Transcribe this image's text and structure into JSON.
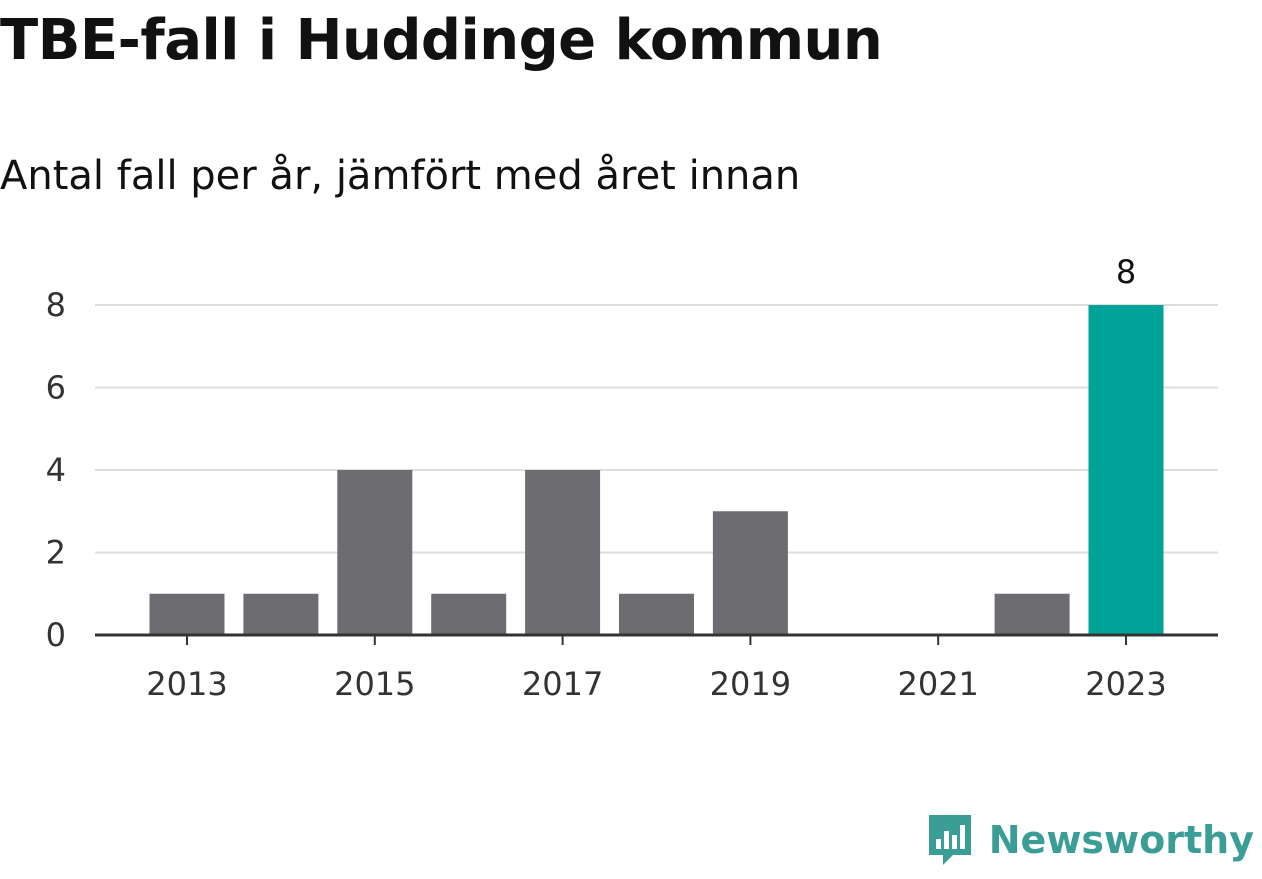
{
  "title": "TBE-fall i Huddinge kommun",
  "subtitle": "Antal fall per år, jämfört med året innan",
  "brand": {
    "name": "Newsworthy",
    "icon": "newsworthy-logo-icon",
    "color": "#3a9e96"
  },
  "colors": {
    "bar": "#6d6c71",
    "highlight": "#00a398",
    "grid": "#dddddd",
    "axis": "#333333"
  },
  "chart_data": {
    "type": "bar",
    "categories": [
      "2013",
      "2014",
      "2015",
      "2016",
      "2017",
      "2018",
      "2019",
      "2020",
      "2021",
      "2022",
      "2023"
    ],
    "values": [
      1,
      1,
      4,
      1,
      4,
      1,
      3,
      0,
      0,
      1,
      8
    ],
    "highlight_index": 10,
    "data_labels": [
      {
        "index": 10,
        "text": "8"
      }
    ],
    "x_tick_labels": [
      "2013",
      "2015",
      "2017",
      "2019",
      "2021",
      "2023"
    ],
    "y_ticks": [
      0,
      2,
      4,
      6,
      8
    ],
    "ylim": [
      0,
      8
    ],
    "grid": true,
    "legend": "none",
    "title": "TBE-fall i Huddinge kommun",
    "subtitle": "Antal fall per år, jämfört med året innan"
  }
}
